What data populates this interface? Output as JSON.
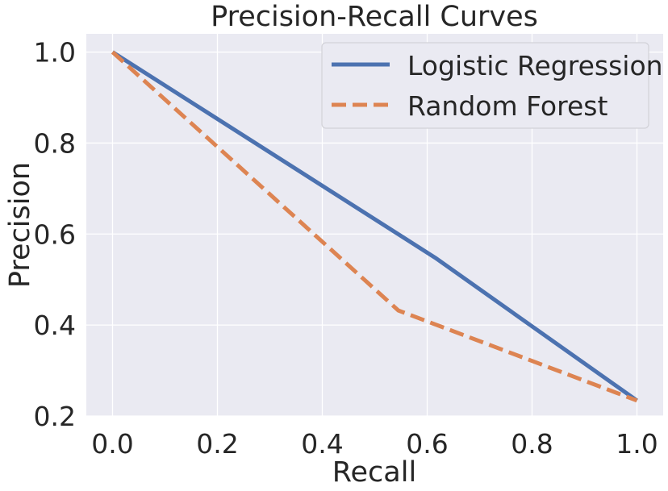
{
  "chart_data": {
    "type": "line",
    "title": "Precision-Recall Curves",
    "xlabel": "Recall",
    "ylabel": "Precision",
    "xlim": [
      -0.05,
      1.05
    ],
    "ylim": [
      0.2,
      1.04
    ],
    "xticks": [
      0.0,
      0.2,
      0.4,
      0.6,
      0.8,
      1.0
    ],
    "xtick_labels": [
      "0.0",
      "0.2",
      "0.4",
      "0.6",
      "0.8",
      "1.0"
    ],
    "yticks": [
      0.2,
      0.4,
      0.6,
      0.8,
      1.0
    ],
    "ytick_labels": [
      "0.2",
      "0.4",
      "0.6",
      "0.8",
      "1.0"
    ],
    "grid": true,
    "legend_position": "top-right",
    "series": [
      {
        "name": "Logistic Regression",
        "color": "#4c72b0",
        "dash": "solid",
        "x": [
          0.0,
          0.615,
          1.0
        ],
        "y": [
          1.0,
          0.548,
          0.234
        ]
      },
      {
        "name": "Random Forest",
        "color": "#dd8452",
        "dash": "dashed",
        "x": [
          0.0,
          0.545,
          1.0
        ],
        "y": [
          1.0,
          0.432,
          0.234
        ]
      }
    ]
  }
}
